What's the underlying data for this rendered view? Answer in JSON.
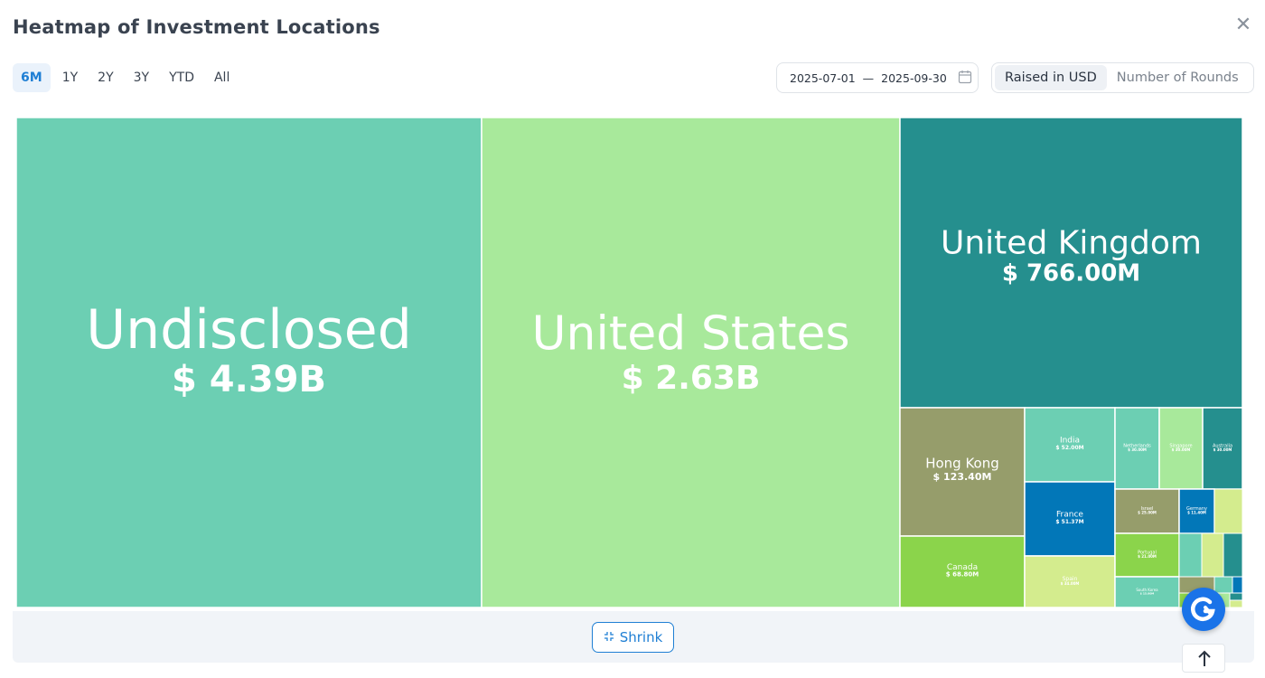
{
  "header": {
    "title": "Heatmap of Investment Locations",
    "close_icon": "close-icon"
  },
  "ranges": [
    "6M",
    "1Y",
    "2Y",
    "3Y",
    "YTD",
    "All"
  ],
  "active_range": "6M",
  "date_range": {
    "start": "2025-07-01",
    "separator": "—",
    "end": "2025-09-30",
    "icon": "calendar-icon"
  },
  "metric_toggle": {
    "options": [
      "Raised in USD",
      "Number of Rounds"
    ],
    "active": "Raised in USD"
  },
  "footer": {
    "shrink_label": "Shrink",
    "shrink_icon": "collapse-icon"
  },
  "floating": {
    "assistant_icon": "assistant-logo-icon",
    "scroll_top_icon": "arrow-up-icon"
  },
  "colors": {
    "teal_light": "#6ccfb3",
    "green_light": "#a8e99b",
    "teal_dark": "#258f8e",
    "olive": "#969d6b",
    "green": "#8bd44b",
    "blue": "#0277b8",
    "lime_pale": "#d4ec8e",
    "accent": "#1f7fd4"
  },
  "chart_data": {
    "type": "treemap",
    "metric": "Raised in USD",
    "items": [
      {
        "name": "Undisclosed",
        "label": "$ 4.39B",
        "value": 4390
      },
      {
        "name": "United States",
        "label": "$ 2.63B",
        "value": 2630
      },
      {
        "name": "United Kingdom",
        "label": "$ 766.00M",
        "value": 766
      },
      {
        "name": "Hong Kong",
        "label": "$ 123.40M",
        "value": 123.4
      },
      {
        "name": "Canada",
        "label": "$ 68.80M",
        "value": 68.8
      },
      {
        "name": "India",
        "label": "$ 52.00M",
        "value": 52
      },
      {
        "name": "France",
        "label": "$ 51.37M",
        "value": 51.37
      },
      {
        "name": "Spain",
        "label": "$ 34.00M",
        "value": 34
      },
      {
        "name": "Netherlands",
        "label": "$ 30.00M",
        "value": 30
      },
      {
        "name": "Singapore",
        "label": "$ 30.00M",
        "value": 30
      },
      {
        "name": "Australia",
        "label": "$ 30.00M",
        "value": 30
      },
      {
        "name": "Israel",
        "label": "$ 25.00M",
        "value": 25
      },
      {
        "name": "Germany",
        "label": "$ 11.40M",
        "value": 11.4
      },
      {
        "name": "Portugal",
        "label": "$ 21.00M",
        "value": 21
      },
      {
        "name": "South Korea",
        "label": "$ 15.00M",
        "value": 15
      }
    ]
  }
}
